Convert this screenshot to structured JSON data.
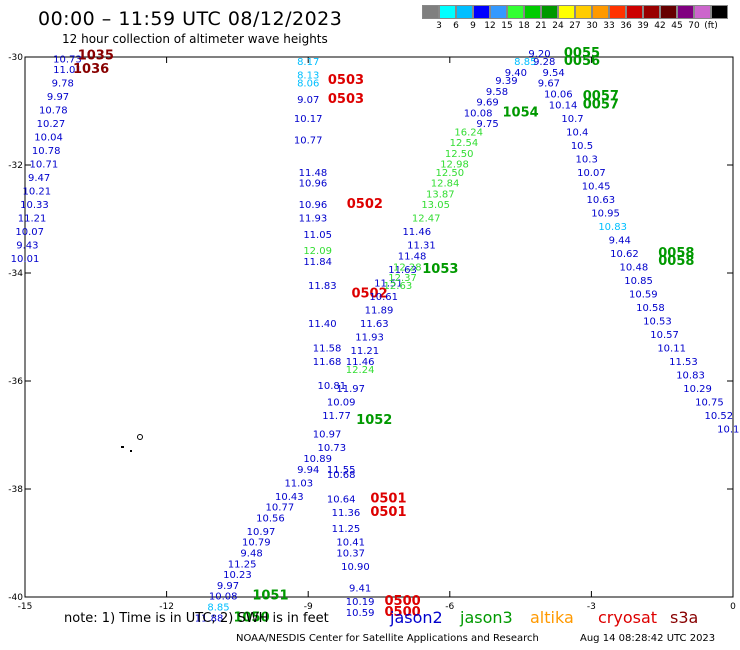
{
  "header": {
    "title": "00:00 – 11:59 UTC 08/12/2023",
    "subtitle": "12 hour collection of altimeter wave heights"
  },
  "colorbar": {
    "colors": [
      "#7f7f7f",
      "#00ffff",
      "#00bfff",
      "#0000ff",
      "#3399ff",
      "#33ff33",
      "#00cc00",
      "#009900",
      "#ffff00",
      "#ffcc00",
      "#ff9900",
      "#ff3300",
      "#cc0000",
      "#990000",
      "#660000",
      "#800080",
      "#cc66cc",
      "#000000"
    ],
    "labels": [
      "3",
      "6",
      "9",
      "12",
      "15",
      "18",
      "21",
      "24",
      "27",
      "30",
      "33",
      "36",
      "39",
      "42",
      "45",
      "70",
      "(ft)"
    ]
  },
  "axes": {
    "x_ticks": [
      "-15",
      "-12",
      "-9",
      "-6",
      "-3",
      "0"
    ],
    "y_ticks": [
      "-30",
      "-32",
      "-34",
      "-36",
      "-38",
      "-40"
    ]
  },
  "footer": {
    "note": "note:  1) Time is in UTC;  2) SWH is in feet",
    "credit": "NOAA/NESDIS Center for Satellite Applications and Research",
    "stamp": "Aug 14 08:28:42 UTC 2023"
  },
  "legend": [
    {
      "name": "jason2",
      "color": "#0000cc"
    },
    {
      "name": "jason3",
      "color": "#009900"
    },
    {
      "name": "altika",
      "color": "#ff9900"
    },
    {
      "name": "cryosat",
      "color": "#dd0000"
    },
    {
      "name": "s3a",
      "color": "#880000"
    }
  ],
  "chart_data": {
    "type": "scatter",
    "xlim": [
      -15,
      0
    ],
    "ylim": [
      -40,
      -30
    ],
    "labels": [
      {
        "t": "10.73",
        "lon": -14.1,
        "lat": -30.1,
        "c": "#0000cc"
      },
      {
        "t": "11.01",
        "lon": -14.1,
        "lat": -30.3,
        "c": "#0000cc"
      },
      {
        "t": "9.78",
        "lon": -14.2,
        "lat": -30.55,
        "c": "#0000cc"
      },
      {
        "t": "9.97",
        "lon": -14.3,
        "lat": -30.8,
        "c": "#0000cc"
      },
      {
        "t": "10.78",
        "lon": -14.4,
        "lat": -31.05,
        "c": "#0000cc"
      },
      {
        "t": "10.27",
        "lon": -14.45,
        "lat": -31.3,
        "c": "#0000cc"
      },
      {
        "t": "10.04",
        "lon": -14.5,
        "lat": -31.55,
        "c": "#0000cc"
      },
      {
        "t": "10.78",
        "lon": -14.55,
        "lat": -31.8,
        "c": "#0000cc"
      },
      {
        "t": "10.71",
        "lon": -14.6,
        "lat": -32.05,
        "c": "#0000cc"
      },
      {
        "t": "9.47",
        "lon": -14.7,
        "lat": -32.3,
        "c": "#0000cc"
      },
      {
        "t": "10.21",
        "lon": -14.75,
        "lat": -32.55,
        "c": "#0000cc"
      },
      {
        "t": "10.33",
        "lon": -14.8,
        "lat": -32.8,
        "c": "#0000cc"
      },
      {
        "t": "11.21",
        "lon": -14.85,
        "lat": -33.05,
        "c": "#0000cc"
      },
      {
        "t": "10.07",
        "lon": -14.9,
        "lat": -33.3,
        "c": "#0000cc"
      },
      {
        "t": "9.43",
        "lon": -14.95,
        "lat": -33.55,
        "c": "#0000cc"
      },
      {
        "t": "10.01",
        "lon": -15.0,
        "lat": -33.8,
        "c": "#0000cc"
      },
      {
        "t": "1035",
        "lon": -13.5,
        "lat": -30.05,
        "c": "#880000",
        "big": true
      },
      {
        "t": "1036",
        "lon": -13.6,
        "lat": -30.3,
        "c": "#880000",
        "big": true
      },
      {
        "t": "8.17",
        "lon": -9.0,
        "lat": -30.15,
        "c": "#00bfff"
      },
      {
        "t": "8.13",
        "lon": -9.0,
        "lat": -30.4,
        "c": "#00bfff"
      },
      {
        "t": "8.06",
        "lon": -9.0,
        "lat": -30.55,
        "c": "#00bfff"
      },
      {
        "t": "0503",
        "lon": -8.2,
        "lat": -30.5,
        "c": "#dd0000",
        "big": true
      },
      {
        "t": "9.07",
        "lon": -9.0,
        "lat": -30.85,
        "c": "#0000cc"
      },
      {
        "t": "0503",
        "lon": -8.2,
        "lat": -30.85,
        "c": "#dd0000",
        "big": true
      },
      {
        "t": "10.17",
        "lon": -9.0,
        "lat": -31.2,
        "c": "#0000cc"
      },
      {
        "t": "10.77",
        "lon": -9.0,
        "lat": -31.6,
        "c": "#0000cc"
      },
      {
        "t": "11.48",
        "lon": -8.9,
        "lat": -32.2,
        "c": "#0000cc"
      },
      {
        "t": "10.96",
        "lon": -8.9,
        "lat": -32.4,
        "c": "#0000cc"
      },
      {
        "t": "10.96",
        "lon": -8.9,
        "lat": -32.8,
        "c": "#0000cc"
      },
      {
        "t": "0502",
        "lon": -7.8,
        "lat": -32.8,
        "c": "#dd0000",
        "big": true
      },
      {
        "t": "11.93",
        "lon": -8.9,
        "lat": -33.05,
        "c": "#0000cc"
      },
      {
        "t": "11.05",
        "lon": -8.8,
        "lat": -33.35,
        "c": "#0000cc"
      },
      {
        "t": "12.09",
        "lon": -8.8,
        "lat": -33.65,
        "c": "#33dd33"
      },
      {
        "t": "11.84",
        "lon": -8.8,
        "lat": -33.85,
        "c": "#0000cc"
      },
      {
        "t": "11.83",
        "lon": -8.7,
        "lat": -34.3,
        "c": "#0000cc"
      },
      {
        "t": "0502",
        "lon": -7.7,
        "lat": -34.45,
        "c": "#dd0000",
        "big": true
      },
      {
        "t": "11.40",
        "lon": -8.7,
        "lat": -35.0,
        "c": "#0000cc"
      },
      {
        "t": "11.58",
        "lon": -8.6,
        "lat": -35.45,
        "c": "#0000cc"
      },
      {
        "t": "11.68",
        "lon": -8.6,
        "lat": -35.7,
        "c": "#0000cc"
      },
      {
        "t": "11.46",
        "lon": -7.9,
        "lat": -35.7,
        "c": "#0000cc"
      },
      {
        "t": "11.21",
        "lon": -7.8,
        "lat": -35.5,
        "c": "#0000cc"
      },
      {
        "t": "11.93",
        "lon": -7.7,
        "lat": -35.25,
        "c": "#0000cc"
      },
      {
        "t": "11.63",
        "lon": -7.6,
        "lat": -35.0,
        "c": "#0000cc"
      },
      {
        "t": "11.89",
        "lon": -7.5,
        "lat": -34.75,
        "c": "#0000cc"
      },
      {
        "t": "10.61",
        "lon": -7.4,
        "lat": -34.5,
        "c": "#0000cc"
      },
      {
        "t": "11.51",
        "lon": -7.3,
        "lat": -34.25,
        "c": "#0000cc"
      },
      {
        "t": "11.63",
        "lon": -7.0,
        "lat": -34.0,
        "c": "#0000cc"
      },
      {
        "t": "12.63",
        "lon": -7.1,
        "lat": -34.3,
        "c": "#33dd33"
      },
      {
        "t": "12.24",
        "lon": -7.9,
        "lat": -35.85,
        "c": "#33dd33"
      },
      {
        "t": "10.81",
        "lon": -8.5,
        "lat": -36.15,
        "c": "#0000cc"
      },
      {
        "t": "11.97",
        "lon": -8.1,
        "lat": -36.2,
        "c": "#0000cc"
      },
      {
        "t": "10.09",
        "lon": -8.3,
        "lat": -36.45,
        "c": "#0000cc"
      },
      {
        "t": "11.77",
        "lon": -8.4,
        "lat": -36.7,
        "c": "#0000cc"
      },
      {
        "t": "1052",
        "lon": -7.6,
        "lat": -36.8,
        "c": "#009900",
        "big": true
      },
      {
        "t": "10.97",
        "lon": -8.6,
        "lat": -37.05,
        "c": "#0000cc"
      },
      {
        "t": "10.73",
        "lon": -8.5,
        "lat": -37.3,
        "c": "#0000cc"
      },
      {
        "t": "10.89",
        "lon": -8.8,
        "lat": -37.5,
        "c": "#0000cc"
      },
      {
        "t": "9.94",
        "lon": -9.0,
        "lat": -37.7,
        "c": "#0000cc"
      },
      {
        "t": "11.55",
        "lon": -8.3,
        "lat": -37.7,
        "c": "#0000cc"
      },
      {
        "t": "10.68",
        "lon": -8.3,
        "lat": -37.8,
        "c": "#0000cc"
      },
      {
        "t": "11.03",
        "lon": -9.2,
        "lat": -37.95,
        "c": "#0000cc"
      },
      {
        "t": "10.43",
        "lon": -9.4,
        "lat": -38.2,
        "c": "#0000cc"
      },
      {
        "t": "10.77",
        "lon": -9.6,
        "lat": -38.4,
        "c": "#0000cc"
      },
      {
        "t": "10.64",
        "lon": -8.3,
        "lat": -38.25,
        "c": "#0000cc"
      },
      {
        "t": "0501",
        "lon": -7.3,
        "lat": -38.25,
        "c": "#dd0000",
        "big": true
      },
      {
        "t": "11.36",
        "lon": -8.2,
        "lat": -38.5,
        "c": "#0000cc"
      },
      {
        "t": "0501",
        "lon": -7.3,
        "lat": -38.5,
        "c": "#dd0000",
        "big": true
      },
      {
        "t": "10.56",
        "lon": -9.8,
        "lat": -38.6,
        "c": "#0000cc"
      },
      {
        "t": "10.97",
        "lon": -10.0,
        "lat": -38.85,
        "c": "#0000cc"
      },
      {
        "t": "11.25",
        "lon": -8.2,
        "lat": -38.8,
        "c": "#0000cc"
      },
      {
        "t": "10.79",
        "lon": -10.1,
        "lat": -39.05,
        "c": "#0000cc"
      },
      {
        "t": "10.41",
        "lon": -8.1,
        "lat": -39.05,
        "c": "#0000cc"
      },
      {
        "t": "9.48",
        "lon": -10.2,
        "lat": -39.25,
        "c": "#0000cc"
      },
      {
        "t": "10.37",
        "lon": -8.1,
        "lat": -39.25,
        "c": "#0000cc"
      },
      {
        "t": "11.25",
        "lon": -10.4,
        "lat": -39.45,
        "c": "#0000cc"
      },
      {
        "t": "10.90",
        "lon": -8.0,
        "lat": -39.5,
        "c": "#0000cc"
      },
      {
        "t": "10.23",
        "lon": -10.5,
        "lat": -39.65,
        "c": "#0000cc"
      },
      {
        "t": "9.97",
        "lon": -10.7,
        "lat": -39.85,
        "c": "#0000cc"
      },
      {
        "t": "9.41",
        "lon": -7.9,
        "lat": -39.9,
        "c": "#0000cc"
      },
      {
        "t": "10.08",
        "lon": -10.8,
        "lat": -40.05,
        "c": "#0000cc"
      },
      {
        "t": "1051",
        "lon": -9.8,
        "lat": -40.05,
        "c": "#009900",
        "big": true
      },
      {
        "t": "10.19",
        "lon": -7.9,
        "lat": -40.15,
        "c": "#0000cc"
      },
      {
        "t": "0500",
        "lon": -7.0,
        "lat": -40.15,
        "c": "#dd0000",
        "big": true
      },
      {
        "t": "8.85",
        "lon": -10.9,
        "lat": -40.25,
        "c": "#00bfff"
      },
      {
        "t": "10.59",
        "lon": -7.9,
        "lat": -40.35,
        "c": "#0000cc"
      },
      {
        "t": "0500",
        "lon": -7.0,
        "lat": -40.35,
        "c": "#dd0000",
        "big": true
      },
      {
        "t": "11.88",
        "lon": -11.1,
        "lat": -40.45,
        "c": "#0000cc"
      },
      {
        "t": "1050",
        "lon": -10.2,
        "lat": -40.45,
        "c": "#009900",
        "big": true
      },
      {
        "t": "11.46",
        "lon": -6.7,
        "lat": -33.3,
        "c": "#0000cc"
      },
      {
        "t": "11.31",
        "lon": -6.6,
        "lat": -33.55,
        "c": "#0000cc"
      },
      {
        "t": "11.48",
        "lon": -6.8,
        "lat": -33.75,
        "c": "#0000cc"
      },
      {
        "t": "12.28",
        "lon": -6.9,
        "lat": -33.95,
        "c": "#33dd33"
      },
      {
        "t": "12.37",
        "lon": -7.0,
        "lat": -34.15,
        "c": "#33dd33"
      },
      {
        "t": "1053",
        "lon": -6.2,
        "lat": -34.0,
        "c": "#009900",
        "big": true
      },
      {
        "t": "12.47",
        "lon": -6.5,
        "lat": -33.05,
        "c": "#33dd33"
      },
      {
        "t": "13.05",
        "lon": -6.3,
        "lat": -32.8,
        "c": "#33dd33"
      },
      {
        "t": "13.87",
        "lon": -6.2,
        "lat": -32.6,
        "c": "#33dd33"
      },
      {
        "t": "12.84",
        "lon": -6.1,
        "lat": -32.4,
        "c": "#33dd33"
      },
      {
        "t": "12.50",
        "lon": -6.0,
        "lat": -32.2,
        "c": "#33dd33"
      },
      {
        "t": "12.98",
        "lon": -5.9,
        "lat": -32.05,
        "c": "#33dd33"
      },
      {
        "t": "12.50",
        "lon": -5.8,
        "lat": -31.85,
        "c": "#33dd33"
      },
      {
        "t": "12.54",
        "lon": -5.7,
        "lat": -31.65,
        "c": "#33dd33"
      },
      {
        "t": "16.24",
        "lon": -5.6,
        "lat": -31.45,
        "c": "#33dd33"
      },
      {
        "t": "9.75",
        "lon": -5.2,
        "lat": -31.3,
        "c": "#0000cc"
      },
      {
        "t": "10.08",
        "lon": -5.4,
        "lat": -31.1,
        "c": "#0000cc"
      },
      {
        "t": "1054",
        "lon": -4.5,
        "lat": -31.1,
        "c": "#009900",
        "big": true
      },
      {
        "t": "9.69",
        "lon": -5.2,
        "lat": -30.9,
        "c": "#0000cc"
      },
      {
        "t": "9.58",
        "lon": -5.0,
        "lat": -30.7,
        "c": "#0000cc"
      },
      {
        "t": "9.39",
        "lon": -4.8,
        "lat": -30.5,
        "c": "#0000cc"
      },
      {
        "t": "9.40",
        "lon": -4.6,
        "lat": -30.35,
        "c": "#0000cc"
      },
      {
        "t": "8.85",
        "lon": -4.4,
        "lat": -30.15,
        "c": "#00bfff"
      },
      {
        "t": "9.20",
        "lon": -4.1,
        "lat": -30.0,
        "c": "#0000cc"
      },
      {
        "t": "9.28",
        "lon": -4.0,
        "lat": -30.15,
        "c": "#0000cc"
      },
      {
        "t": "0055",
        "lon": -3.2,
        "lat": -30.0,
        "c": "#009900",
        "big": true
      },
      {
        "t": "0056",
        "lon": -3.2,
        "lat": -30.15,
        "c": "#009900",
        "big": true
      },
      {
        "t": "9.54",
        "lon": -3.8,
        "lat": -30.35,
        "c": "#0000cc"
      },
      {
        "t": "9.67",
        "lon": -3.9,
        "lat": -30.55,
        "c": "#0000cc"
      },
      {
        "t": "10.06",
        "lon": -3.7,
        "lat": -30.75,
        "c": "#0000cc"
      },
      {
        "t": "10.14",
        "lon": -3.6,
        "lat": -30.95,
        "c": "#0000cc"
      },
      {
        "t": "0057",
        "lon": -2.8,
        "lat": -30.8,
        "c": "#009900",
        "big": true
      },
      {
        "t": "0057",
        "lon": -2.8,
        "lat": -30.95,
        "c": "#009900",
        "big": true
      },
      {
        "t": "10.7",
        "lon": -3.4,
        "lat": -31.2,
        "c": "#0000cc"
      },
      {
        "t": "10.4",
        "lon": -3.3,
        "lat": -31.45,
        "c": "#0000cc"
      },
      {
        "t": "10.5",
        "lon": -3.2,
        "lat": -31.7,
        "c": "#0000cc"
      },
      {
        "t": "10.3",
        "lon": -3.1,
        "lat": -31.95,
        "c": "#0000cc"
      },
      {
        "t": "10.07",
        "lon": -3.0,
        "lat": -32.2,
        "c": "#0000cc"
      },
      {
        "t": "10.45",
        "lon": -2.9,
        "lat": -32.45,
        "c": "#0000cc"
      },
      {
        "t": "10.63",
        "lon": -2.8,
        "lat": -32.7,
        "c": "#0000cc"
      },
      {
        "t": "10.95",
        "lon": -2.7,
        "lat": -32.95,
        "c": "#0000cc"
      },
      {
        "t": "10.83",
        "lon": -2.55,
        "lat": -33.2,
        "c": "#00bfff"
      },
      {
        "t": "9.44",
        "lon": -2.4,
        "lat": -33.45,
        "c": "#0000cc"
      },
      {
        "t": "10.62",
        "lon": -2.3,
        "lat": -33.7,
        "c": "#0000cc"
      },
      {
        "t": "0058",
        "lon": -1.2,
        "lat": -33.7,
        "c": "#009900",
        "big": true
      },
      {
        "t": "0058",
        "lon": -1.2,
        "lat": -33.85,
        "c": "#009900",
        "big": true
      },
      {
        "t": "10.48",
        "lon": -2.1,
        "lat": -33.95,
        "c": "#0000cc"
      },
      {
        "t": "10.85",
        "lon": -2.0,
        "lat": -34.2,
        "c": "#0000cc"
      },
      {
        "t": "10.59",
        "lon": -1.9,
        "lat": -34.45,
        "c": "#0000cc"
      },
      {
        "t": "10.58",
        "lon": -1.75,
        "lat": -34.7,
        "c": "#0000cc"
      },
      {
        "t": "10.53",
        "lon": -1.6,
        "lat": -34.95,
        "c": "#0000cc"
      },
      {
        "t": "10.57",
        "lon": -1.45,
        "lat": -35.2,
        "c": "#0000cc"
      },
      {
        "t": "10.11",
        "lon": -1.3,
        "lat": -35.45,
        "c": "#0000cc"
      },
      {
        "t": "11.53",
        "lon": -1.05,
        "lat": -35.7,
        "c": "#0000cc"
      },
      {
        "t": "10.83",
        "lon": -0.9,
        "lat": -35.95,
        "c": "#0000cc"
      },
      {
        "t": "10.29",
        "lon": -0.75,
        "lat": -36.2,
        "c": "#0000cc"
      },
      {
        "t": "10.75",
        "lon": -0.5,
        "lat": -36.45,
        "c": "#0000cc"
      },
      {
        "t": "10.52",
        "lon": -0.3,
        "lat": -36.7,
        "c": "#0000cc"
      },
      {
        "t": "10.1",
        "lon": -0.1,
        "lat": -36.95,
        "c": "#0000cc"
      }
    ]
  }
}
